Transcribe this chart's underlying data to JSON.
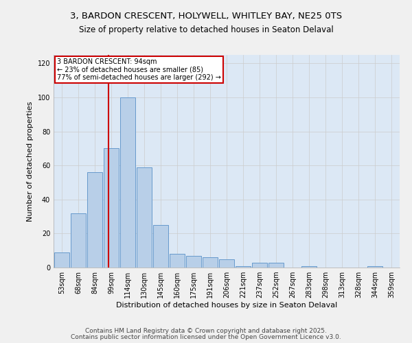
{
  "title_line1": "3, BARDON CRESCENT, HOLYWELL, WHITLEY BAY, NE25 0TS",
  "title_line2": "Size of property relative to detached houses in Seaton Delaval",
  "xlabel": "Distribution of detached houses by size in Seaton Delaval",
  "ylabel": "Number of detached properties",
  "categories": [
    "53sqm",
    "68sqm",
    "84sqm",
    "99sqm",
    "114sqm",
    "130sqm",
    "145sqm",
    "160sqm",
    "175sqm",
    "191sqm",
    "206sqm",
    "221sqm",
    "237sqm",
    "252sqm",
    "267sqm",
    "283sqm",
    "298sqm",
    "313sqm",
    "328sqm",
    "344sqm",
    "359sqm"
  ],
  "values": [
    9,
    32,
    56,
    70,
    100,
    59,
    25,
    8,
    7,
    6,
    5,
    1,
    3,
    3,
    0,
    1,
    0,
    0,
    0,
    1,
    0
  ],
  "bar_color": "#b8cfe8",
  "bar_edge_color": "#6699cc",
  "red_line_x": 2.85,
  "annotation_text": "3 BARDON CRESCENT: 94sqm\n← 23% of detached houses are smaller (85)\n77% of semi-detached houses are larger (292) →",
  "annotation_box_color": "#ffffff",
  "annotation_box_edge": "#cc0000",
  "red_line_color": "#cc0000",
  "footer_line1": "Contains HM Land Registry data © Crown copyright and database right 2025.",
  "footer_line2": "Contains public sector information licensed under the Open Government Licence v3.0.",
  "ylim": [
    0,
    125
  ],
  "yticks": [
    0,
    20,
    40,
    60,
    80,
    100,
    120
  ],
  "grid_color": "#cccccc",
  "bg_color": "#dce8f5",
  "fig_bg_color": "#f0f0f0",
  "title_fontsize": 9.5,
  "subtitle_fontsize": 8.5,
  "axis_label_fontsize": 8,
  "tick_fontsize": 7,
  "annot_fontsize": 7,
  "footer_fontsize": 6.5
}
